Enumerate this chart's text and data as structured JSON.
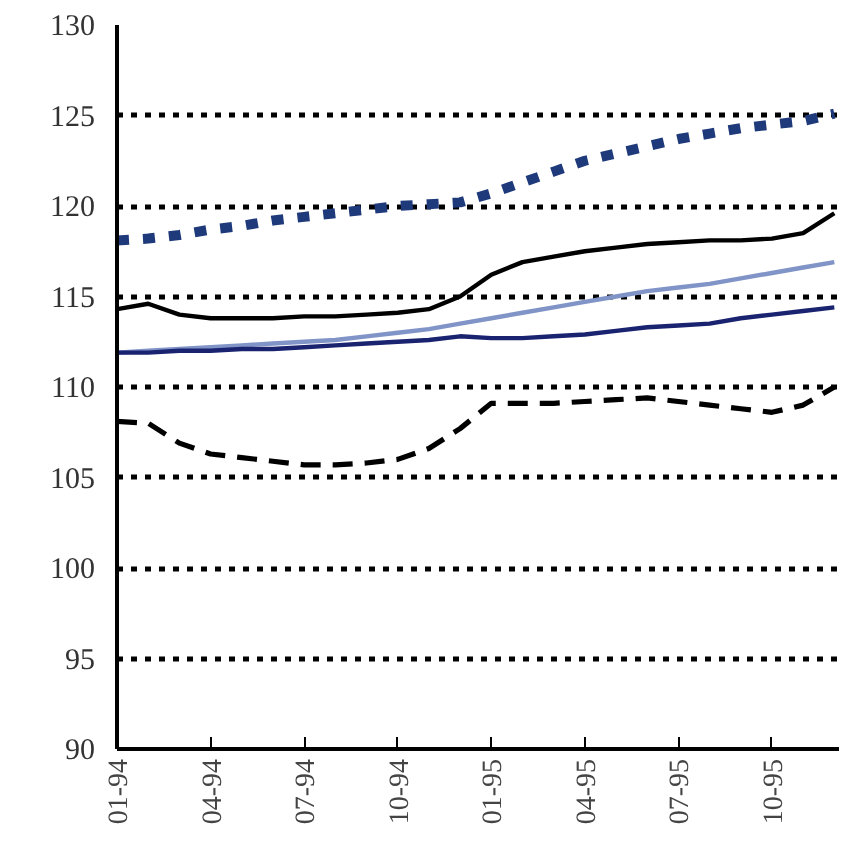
{
  "chart_data": {
    "type": "line",
    "categories": [
      "01-94",
      null,
      null,
      "04-94",
      null,
      null,
      "07-94",
      null,
      null,
      "10-94",
      null,
      null,
      "01-95",
      null,
      null,
      "04-95",
      null,
      null,
      "07-95",
      null,
      null,
      "10-95",
      null,
      null
    ],
    "series": [
      {
        "color": "#1f3a7a",
        "line_style": "dotted",
        "values": [
          118.1,
          118.2,
          118.4,
          118.7,
          118.9,
          119.2,
          119.4,
          119.6,
          119.8,
          120.0,
          120.1,
          120.2,
          120.7,
          121.3,
          121.9,
          122.5,
          122.9,
          123.3,
          123.7,
          124.0,
          124.3,
          124.5,
          124.7,
          125.1
        ]
      },
      {
        "color": "#000000",
        "line_style": "solid",
        "values": [
          114.3,
          114.6,
          114.0,
          113.8,
          113.8,
          113.8,
          113.9,
          113.9,
          114.0,
          114.1,
          114.3,
          115.0,
          116.2,
          116.9,
          117.2,
          117.5,
          117.7,
          117.9,
          118.0,
          118.1,
          118.1,
          118.2,
          118.5,
          119.6
        ]
      },
      {
        "color": "#8094c8",
        "line_style": "solid",
        "values": [
          111.9,
          112.0,
          112.1,
          112.2,
          112.3,
          112.4,
          112.5,
          112.6,
          112.8,
          113.0,
          113.2,
          113.5,
          113.8,
          114.1,
          114.4,
          114.7,
          115.0,
          115.3,
          115.5,
          115.7,
          116.0,
          116.3,
          116.6,
          116.9
        ]
      },
      {
        "color": "#1a2370",
        "line_style": "solid",
        "values": [
          111.9,
          111.9,
          112.0,
          112.0,
          112.1,
          112.1,
          112.2,
          112.3,
          112.4,
          112.5,
          112.6,
          112.8,
          112.7,
          112.7,
          112.8,
          112.9,
          113.1,
          113.3,
          113.4,
          113.5,
          113.8,
          114.0,
          114.2,
          114.4
        ]
      },
      {
        "color": "#000000",
        "line_style": "dashed",
        "values": [
          108.1,
          108.0,
          106.9,
          106.3,
          106.1,
          105.9,
          105.7,
          105.7,
          105.8,
          106.0,
          106.6,
          107.7,
          109.1,
          109.1,
          109.1,
          109.2,
          109.3,
          109.4,
          109.2,
          109.0,
          108.8,
          108.6,
          109.0,
          110.0
        ]
      }
    ],
    "ylim": [
      90,
      130
    ],
    "yticks": [
      90,
      95,
      100,
      105,
      110,
      115,
      120,
      125,
      130
    ],
    "grid": "y"
  }
}
